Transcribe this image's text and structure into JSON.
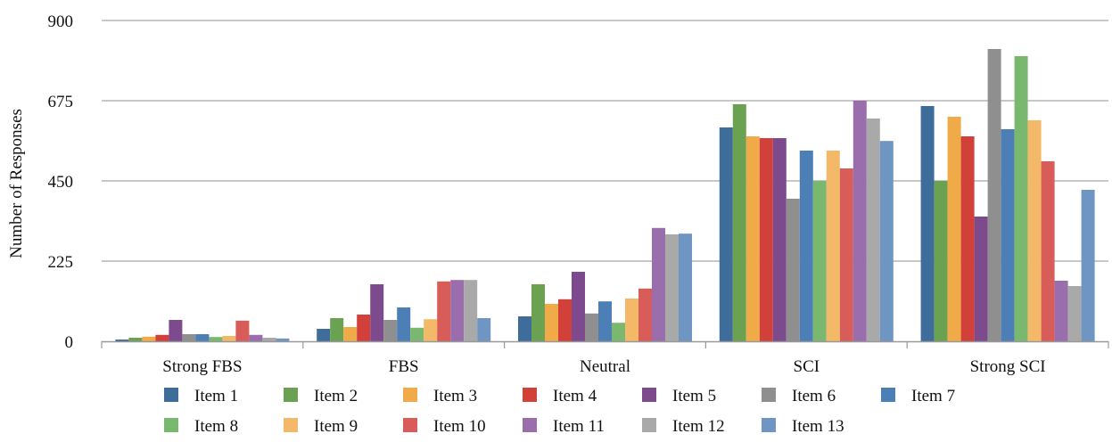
{
  "chart_data": {
    "type": "bar",
    "title": "",
    "xlabel": "",
    "ylabel": "Number of Responses",
    "ylim": [
      0,
      900
    ],
    "yticks": [
      "0",
      "225",
      "450",
      "675",
      "900"
    ],
    "grid": true,
    "legend_position": "bottom",
    "categories": [
      "Strong FBS",
      "FBS",
      "Neutral",
      "SCI",
      "Strong SCI"
    ],
    "series": [
      {
        "name": "Item 1",
        "color": "#3E6D9C",
        "values": [
          5,
          35,
          70,
          600,
          660
        ]
      },
      {
        "name": "Item 2",
        "color": "#6AA251",
        "values": [
          10,
          65,
          160,
          665,
          450
        ]
      },
      {
        "name": "Item 3",
        "color": "#F0AB48",
        "values": [
          13,
          40,
          105,
          575,
          630
        ]
      },
      {
        "name": "Item 4",
        "color": "#D2403A",
        "values": [
          18,
          75,
          118,
          570,
          575
        ]
      },
      {
        "name": "Item 5",
        "color": "#7E4A8E",
        "values": [
          60,
          160,
          195,
          570,
          350
        ]
      },
      {
        "name": "Item 6",
        "color": "#8F8F8F",
        "values": [
          20,
          60,
          78,
          400,
          820
        ]
      },
      {
        "name": "Item 7",
        "color": "#4C7FB6",
        "values": [
          20,
          95,
          112,
          535,
          595
        ]
      },
      {
        "name": "Item 8",
        "color": "#79B86E",
        "values": [
          12,
          38,
          52,
          450,
          800
        ]
      },
      {
        "name": "Item 9",
        "color": "#F4B968",
        "values": [
          15,
          62,
          120,
          535,
          620
        ]
      },
      {
        "name": "Item 10",
        "color": "#D85C57",
        "values": [
          58,
          168,
          148,
          485,
          505
        ]
      },
      {
        "name": "Item 11",
        "color": "#9A6DAD",
        "values": [
          18,
          172,
          318,
          675,
          170
        ]
      },
      {
        "name": "Item 12",
        "color": "#A9A9A9",
        "values": [
          10,
          172,
          300,
          625,
          155
        ]
      },
      {
        "name": "Item 13",
        "color": "#6F95C3",
        "values": [
          8,
          65,
          302,
          562,
          425
        ]
      }
    ]
  }
}
